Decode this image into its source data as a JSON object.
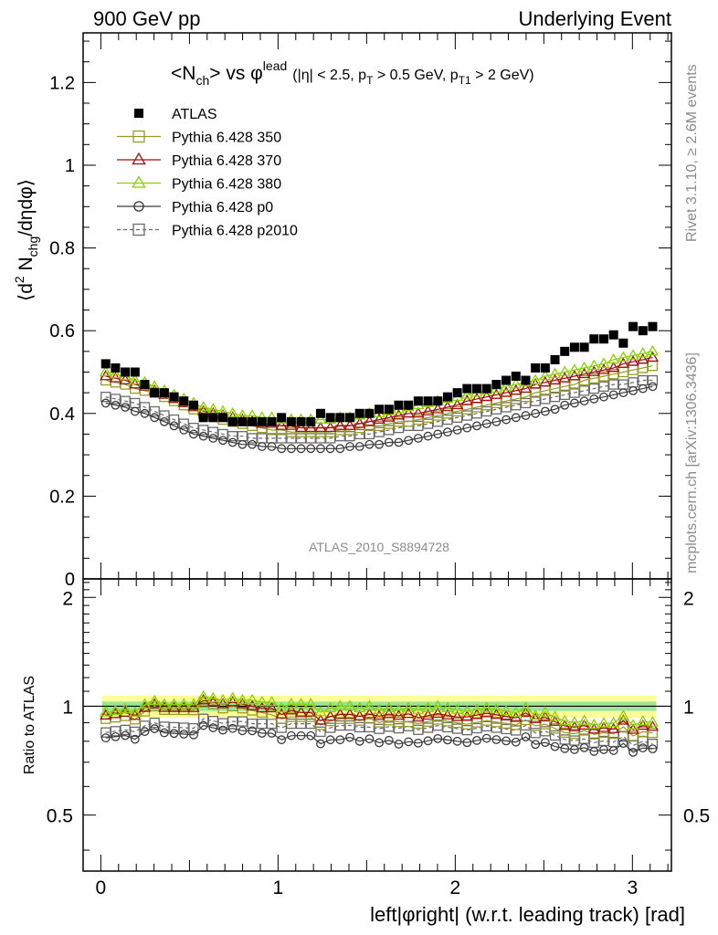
{
  "header": {
    "left": "900 GeV pp",
    "right": "Underlying Event"
  },
  "side_labels": {
    "rivet": "Rivet 3.1.10, ≥ 2.6M events",
    "mcplots": "mcplots.cern.ch [arXiv:1306.3436]"
  },
  "chart_data": [
    {
      "type": "scatter",
      "title": {
        "main_a": "<N",
        "main_a_sub": "ch",
        "main_b": "> vs ",
        "phi": "φ",
        "phi_sup": "lead",
        "cuts_a": "(|η| < 2.5, p",
        "cuts_a_sub": "T",
        "cuts_b": " > 0.5 GeV, p",
        "cuts_b_sub": "T1",
        "cuts_c": " > 2 GeV)"
      },
      "ylabel": {
        "a": "⟨d",
        "sup": "2",
        "b": " N",
        "sub": "chg",
        "c": "/dηdφ⟩"
      },
      "watermark": "ATLAS_2010_S8894728",
      "xlim": [
        -0.1,
        3.22
      ],
      "ylim": [
        0,
        1.32
      ],
      "yticks": [
        {
          "v": 0,
          "label": "0"
        },
        {
          "v": 0.2,
          "label": "0.2"
        },
        {
          "v": 0.4,
          "label": "0.4"
        },
        {
          "v": 0.6,
          "label": "0.6"
        },
        {
          "v": 0.8,
          "label": "0.8"
        },
        {
          "v": 1.0,
          "label": "1"
        },
        {
          "v": 1.2,
          "label": "1.2"
        }
      ],
      "legend_position": "top-left",
      "series": [
        {
          "name": "ATLAS",
          "marker": "square-filled",
          "color": "#000000",
          "line": "none",
          "values": [
            0.52,
            0.51,
            0.5,
            0.5,
            0.47,
            0.45,
            0.45,
            0.44,
            0.43,
            0.42,
            0.39,
            0.39,
            0.39,
            0.38,
            0.38,
            0.38,
            0.38,
            0.38,
            0.39,
            0.38,
            0.38,
            0.38,
            0.4,
            0.39,
            0.39,
            0.39,
            0.4,
            0.4,
            0.41,
            0.41,
            0.42,
            0.42,
            0.43,
            0.43,
            0.43,
            0.44,
            0.45,
            0.46,
            0.46,
            0.46,
            0.47,
            0.48,
            0.49,
            0.48,
            0.51,
            0.51,
            0.53,
            0.55,
            0.56,
            0.56,
            0.58,
            0.58,
            0.59,
            0.57,
            0.61,
            0.6,
            0.61
          ]
        },
        {
          "name": "Pythia 6.428 350",
          "marker": "square-open",
          "color": "#9a9a2a",
          "line": "solid",
          "values": [
            0.48,
            0.475,
            0.47,
            0.46,
            0.455,
            0.45,
            0.44,
            0.43,
            0.42,
            0.41,
            0.4,
            0.395,
            0.385,
            0.38,
            0.375,
            0.37,
            0.365,
            0.36,
            0.36,
            0.355,
            0.355,
            0.355,
            0.355,
            0.355,
            0.36,
            0.36,
            0.365,
            0.37,
            0.37,
            0.375,
            0.38,
            0.38,
            0.385,
            0.39,
            0.395,
            0.4,
            0.405,
            0.41,
            0.415,
            0.42,
            0.425,
            0.43,
            0.435,
            0.44,
            0.45,
            0.455,
            0.46,
            0.465,
            0.47,
            0.48,
            0.485,
            0.49,
            0.495,
            0.5,
            0.505,
            0.51,
            0.515
          ]
        },
        {
          "name": "Pythia 6.428 370",
          "marker": "triangle-open",
          "color": "#a01010",
          "line": "solid",
          "values": [
            0.49,
            0.485,
            0.48,
            0.47,
            0.465,
            0.455,
            0.445,
            0.435,
            0.425,
            0.415,
            0.405,
            0.4,
            0.395,
            0.39,
            0.385,
            0.38,
            0.375,
            0.375,
            0.37,
            0.37,
            0.365,
            0.365,
            0.365,
            0.365,
            0.37,
            0.37,
            0.375,
            0.38,
            0.385,
            0.39,
            0.395,
            0.4,
            0.4,
            0.405,
            0.41,
            0.415,
            0.42,
            0.43,
            0.435,
            0.44,
            0.445,
            0.45,
            0.455,
            0.46,
            0.47,
            0.475,
            0.48,
            0.485,
            0.49,
            0.495,
            0.5,
            0.505,
            0.51,
            0.52,
            0.525,
            0.53,
            0.535
          ]
        },
        {
          "name": "Pythia 6.428 380",
          "marker": "triangle-open",
          "color": "#8ad100",
          "line": "solid",
          "values": [
            0.5,
            0.495,
            0.49,
            0.48,
            0.475,
            0.465,
            0.455,
            0.445,
            0.435,
            0.425,
            0.415,
            0.41,
            0.405,
            0.4,
            0.395,
            0.395,
            0.39,
            0.39,
            0.385,
            0.385,
            0.385,
            0.385,
            0.385,
            0.385,
            0.39,
            0.39,
            0.395,
            0.4,
            0.4,
            0.405,
            0.41,
            0.415,
            0.42,
            0.425,
            0.43,
            0.435,
            0.44,
            0.445,
            0.45,
            0.455,
            0.46,
            0.465,
            0.47,
            0.475,
            0.48,
            0.49,
            0.495,
            0.5,
            0.505,
            0.51,
            0.515,
            0.52,
            0.53,
            0.535,
            0.54,
            0.545,
            0.55
          ]
        },
        {
          "name": "Pythia 6.428 p0",
          "marker": "circle-open",
          "color": "#3a3a3a",
          "line": "solid",
          "values": [
            0.425,
            0.42,
            0.415,
            0.405,
            0.4,
            0.39,
            0.38,
            0.37,
            0.36,
            0.35,
            0.345,
            0.34,
            0.335,
            0.33,
            0.325,
            0.325,
            0.32,
            0.32,
            0.315,
            0.315,
            0.315,
            0.315,
            0.315,
            0.315,
            0.315,
            0.32,
            0.32,
            0.325,
            0.325,
            0.33,
            0.33,
            0.335,
            0.34,
            0.345,
            0.35,
            0.355,
            0.36,
            0.365,
            0.37,
            0.375,
            0.38,
            0.385,
            0.39,
            0.395,
            0.4,
            0.405,
            0.41,
            0.42,
            0.425,
            0.43,
            0.435,
            0.44,
            0.445,
            0.45,
            0.455,
            0.46,
            0.465
          ]
        },
        {
          "name": "Pythia 6.428 p2010",
          "marker": "square-open",
          "color": "#6a6a6a",
          "line": "dashed",
          "values": [
            0.44,
            0.435,
            0.43,
            0.425,
            0.415,
            0.405,
            0.395,
            0.385,
            0.375,
            0.365,
            0.36,
            0.355,
            0.35,
            0.345,
            0.345,
            0.34,
            0.34,
            0.34,
            0.34,
            0.34,
            0.34,
            0.34,
            0.34,
            0.34,
            0.345,
            0.345,
            0.35,
            0.35,
            0.355,
            0.36,
            0.365,
            0.37,
            0.37,
            0.375,
            0.38,
            0.385,
            0.39,
            0.395,
            0.4,
            0.405,
            0.41,
            0.415,
            0.42,
            0.425,
            0.43,
            0.435,
            0.44,
            0.445,
            0.45,
            0.455,
            0.46,
            0.465,
            0.47,
            0.47,
            0.475,
            0.48,
            0.48
          ]
        }
      ]
    },
    {
      "type": "scatter",
      "ylabel": "Ratio to ATLAS",
      "xlabel": "left|φright| (w.r.t. leading track) [rad]",
      "xlim": [
        -0.1,
        3.22
      ],
      "ylim": [
        0.35,
        2.25
      ],
      "xticks": [
        {
          "v": 0,
          "label": "0"
        },
        {
          "v": 1,
          "label": "1"
        },
        {
          "v": 2,
          "label": "2"
        },
        {
          "v": 3,
          "label": "3"
        }
      ],
      "yticks": [
        {
          "v": 0.5,
          "label": "0.5"
        },
        {
          "v": 1,
          "label": "1"
        },
        {
          "v": 2,
          "label": "2"
        }
      ],
      "bands": [
        {
          "name": "syst",
          "color": "#ffff99",
          "lo": 0.93,
          "hi": 1.07
        },
        {
          "name": "stat",
          "color": "#99e699",
          "lo": 0.97,
          "hi": 1.03
        }
      ],
      "reference": 1.0
    }
  ],
  "colors": {
    "atlas": "#000000",
    "p350": "#9a9a2a",
    "p370": "#a01010",
    "p380": "#8ad100",
    "p0": "#3a3a3a",
    "p2010": "#6a6a6a",
    "band_outer": "#ffff99",
    "band_inner": "#99e699"
  }
}
